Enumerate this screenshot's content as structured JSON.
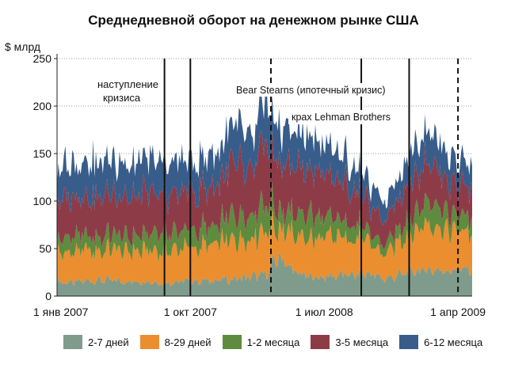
{
  "chart_data": {
    "type": "area",
    "title": "Среднедневной оборот на денежном рынке США",
    "ylabel": "$ млрд",
    "xlabel": "",
    "ylim": [
      0,
      250
    ],
    "yticks": [
      0,
      50,
      100,
      150,
      200,
      250
    ],
    "xlim": [
      "2007-01-01",
      "2009-04-30"
    ],
    "xtick_labels": [
      {
        "date": "2007-01-01",
        "label": "1 янв 2007"
      },
      {
        "date": "2007-10-01",
        "label": "1 окт 2007"
      },
      {
        "date": "2008-07-01",
        "label": "1 июл 2008"
      },
      {
        "date": "2009-04-01",
        "label": "1 апр 2009"
      }
    ],
    "grid": "horizontal dotted",
    "legend_position": "bottom",
    "stacked": true,
    "x": [
      "2007-01-01",
      "2007-02-01",
      "2007-03-01",
      "2007-04-01",
      "2007-05-01",
      "2007-06-01",
      "2007-07-01",
      "2007-08-01",
      "2007-09-01",
      "2007-10-01",
      "2007-11-01",
      "2007-12-01",
      "2008-01-01",
      "2008-02-01",
      "2008-03-01",
      "2008-04-01",
      "2008-05-01",
      "2008-06-01",
      "2008-07-01",
      "2008-08-01",
      "2008-09-01",
      "2008-10-01",
      "2008-11-01",
      "2008-12-01",
      "2009-01-01",
      "2009-02-01",
      "2009-03-01",
      "2009-04-01"
    ],
    "series": [
      {
        "name": "2-7 дней",
        "color": "#7f9b8c",
        "values": [
          15,
          14,
          16,
          17,
          16,
          15,
          16,
          14,
          15,
          16,
          16,
          17,
          18,
          20,
          22,
          42,
          25,
          20,
          20,
          22,
          22,
          24,
          18,
          22,
          26,
          28,
          27,
          28
        ]
      },
      {
        "name": "8-29 дней",
        "color": "#eb8e2f",
        "values": [
          30,
          31,
          32,
          30,
          33,
          32,
          34,
          34,
          35,
          34,
          36,
          38,
          42,
          40,
          48,
          30,
          38,
          40,
          40,
          40,
          38,
          32,
          25,
          35,
          42,
          50,
          45,
          40
        ]
      },
      {
        "name": "1-2 месяца",
        "color": "#5f8b3e",
        "values": [
          15,
          16,
          15,
          16,
          16,
          15,
          16,
          20,
          18,
          18,
          18,
          20,
          30,
          25,
          30,
          18,
          22,
          25,
          22,
          18,
          16,
          10,
          10,
          14,
          20,
          25,
          20,
          16
        ]
      },
      {
        "name": "3-5 месяца",
        "color": "#8e3b48",
        "values": [
          40,
          42,
          40,
          42,
          43,
          40,
          42,
          40,
          40,
          42,
          40,
          44,
          55,
          45,
          60,
          50,
          50,
          48,
          45,
          40,
          38,
          28,
          25,
          35,
          40,
          45,
          35,
          32
        ]
      },
      {
        "name": "6-12 месяца",
        "color": "#385d8a",
        "values": [
          35,
          36,
          35,
          37,
          35,
          36,
          35,
          35,
          34,
          33,
          32,
          33,
          45,
          35,
          45,
          38,
          35,
          35,
          30,
          28,
          26,
          22,
          18,
          24,
          30,
          35,
          30,
          25
        ]
      }
    ],
    "event_lines": [
      {
        "date": "2007-08-09",
        "label": "наступление кризиса",
        "style": "solid"
      },
      {
        "date": "2008-03-14",
        "label": "Bear Stearns (ипотечный кризис)",
        "style": "dashed"
      },
      {
        "date": "2008-09-15",
        "label": "крах Lehman Brothers",
        "style": "solid"
      }
    ],
    "other_lines": [
      {
        "date": "2007-10-01",
        "style": "solid"
      },
      {
        "date": "2009-04-01",
        "style": "dashed"
      },
      {
        "date": "2008-12-22",
        "style": "solid"
      }
    ]
  }
}
